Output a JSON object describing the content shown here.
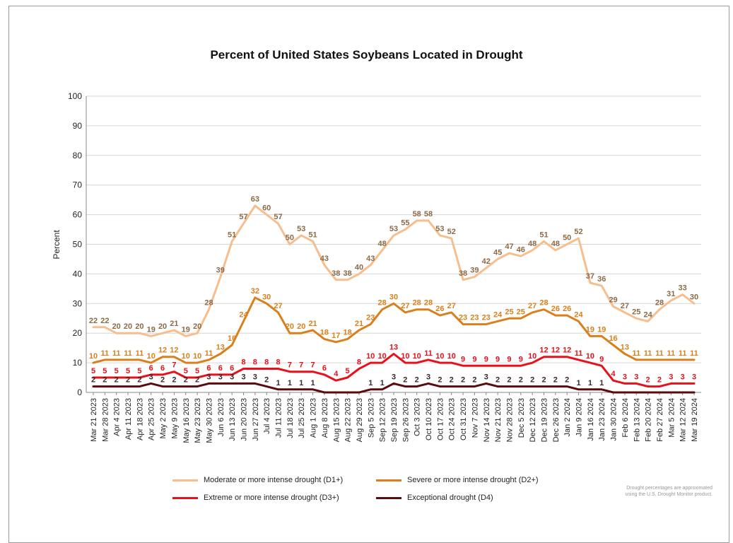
{
  "title": "Percent of United States Soybeans Located in Drought",
  "note_line1": "Drought percentages are approximated",
  "note_line2": "using the U.S. Drought Monitor product.",
  "chart_data": {
    "type": "line",
    "title": "Percent of United States Soybeans Located in Drought",
    "xlabel": "",
    "ylabel": "Percent",
    "ylim": [
      0,
      100
    ],
    "yticks": [
      0,
      10,
      20,
      30,
      40,
      50,
      60,
      70,
      80,
      90,
      100
    ],
    "grid": true,
    "legend_position": "bottom",
    "x": [
      "Mar 21",
      "Mar 28",
      "Apr 4",
      "Apr 11",
      "Apr 18",
      "Apr 25",
      "May 2",
      "May 9",
      "May 16",
      "May 23",
      "May 30",
      "Jun 6",
      "Jun 13",
      "Jun 20",
      "Jun 27",
      "Jul 4",
      "Jul 11",
      "Jul 18",
      "Jul 25",
      "Aug 1",
      "Aug 8",
      "Aug 15",
      "Aug 22",
      "Aug 29",
      "Sep 5",
      "Sep 12",
      "Sep 19",
      "Sep 26",
      "Oct 3",
      "Oct 10",
      "Oct 17",
      "Oct 24",
      "Oct 31",
      "Nov 7",
      "Nov 14",
      "Nov 21",
      "Nov 28",
      "Dec 5",
      "Dec 12",
      "Dec 19",
      "Dec 26",
      "Jan 2",
      "Jan 9",
      "Jan 16",
      "Jan 23",
      "Jan 30",
      "Feb 6",
      "Feb 13",
      "Feb 20",
      "Feb 27",
      "Mar 5",
      "Mar 12",
      "Mar 19"
    ],
    "x_tick_labels": [
      "Mar 21 2023",
      "Mar 28 2023",
      "Apr 4 2023",
      "Apr 11 2023",
      "Apr 18 2023",
      "Apr 25 2023",
      "May 2 2023",
      "May 9 2023",
      "May 16 2023",
      "May 23 2023",
      "May 30 2023",
      "Jun 6 2023",
      "Jun 13 2023",
      "Jun 20 2023",
      "Jun 27 2023",
      "Jul 4 2023",
      "Jul 11 2023",
      "Jul 18 2023",
      "Jul 25 2023",
      "Aug 1 2023",
      "Aug 8 2023",
      "Aug 15 2023",
      "Aug 22 2023",
      "Aug 29 2023",
      "Sep 5 2023",
      "Sep 12 2023",
      "Sep 19 2023",
      "Sep 26 2023",
      "Oct 3 2023",
      "Oct 10 2023",
      "Oct 17 2023",
      "Oct 24 2023",
      "Oct 31 2023",
      "Nov 7 2023",
      "Nov 14 2023",
      "Nov 21 2023",
      "Nov 28 2023",
      "Dec 5 2023",
      "Dec 12 2023",
      "Dec 19 2023",
      "Dec 26 2023",
      "Jan 2 2024",
      "Jan 9 2024",
      "Jan 16 2024",
      "Jan 23 2024",
      "Jan 30 2024",
      "Feb 6 2024",
      "Feb 13 2024",
      "Feb 20 2024",
      "Feb 27 2024",
      "Mar 5 2024",
      "Mar 12 2024",
      "Mar 19 2024"
    ],
    "series": [
      {
        "name": "Moderate or more intense drought (D1+)",
        "color": "#f6be8e",
        "values": [
          22,
          22,
          20,
          20,
          20,
          19,
          20,
          21,
          19,
          20,
          28,
          39,
          51,
          57,
          63,
          60,
          57,
          50,
          53,
          51,
          43,
          38,
          38,
          40,
          43,
          48,
          53,
          55,
          58,
          58,
          53,
          52,
          38,
          39,
          42,
          45,
          47,
          46,
          48,
          51,
          48,
          50,
          52,
          37,
          36,
          29,
          27,
          25,
          24,
          28,
          31,
          33,
          30
        ],
        "label_color": "#8b6a45"
      },
      {
        "name": "Severe or more intense drought (D2+)",
        "color": "#d9801c",
        "values": [
          10,
          11,
          11,
          11,
          11,
          10,
          12,
          12,
          10,
          10,
          11,
          13,
          16,
          24,
          32,
          30,
          27,
          20,
          20,
          21,
          18,
          17,
          18,
          21,
          23,
          28,
          30,
          27,
          28,
          28,
          26,
          27,
          23,
          23,
          23,
          24,
          25,
          25,
          27,
          28,
          26,
          26,
          24,
          19,
          19,
          16,
          13,
          11,
          11,
          11,
          11,
          11,
          11
        ],
        "label_color": "#d9801c"
      },
      {
        "name": "Extreme or more intense drought (D3+)",
        "color": "#e8101a",
        "values": [
          5,
          5,
          5,
          5,
          5,
          6,
          6,
          7,
          5,
          5,
          6,
          6,
          6,
          8,
          8,
          8,
          8,
          7,
          7,
          7,
          6,
          4,
          5,
          8,
          10,
          10,
          13,
          10,
          10,
          11,
          10,
          10,
          9,
          9,
          9,
          9,
          9,
          9,
          10,
          12,
          12,
          12,
          11,
          10,
          9,
          4,
          3,
          3,
          2,
          2,
          3,
          3,
          3
        ],
        "label_color": "#e8101a"
      },
      {
        "name": "Exceptional drought (D4)",
        "color": "#5b0a0e",
        "values": [
          2,
          2,
          2,
          2,
          2,
          3,
          2,
          2,
          2,
          2,
          3,
          3,
          3,
          3,
          3,
          2,
          1,
          1,
          1,
          1,
          0,
          0,
          0,
          0,
          1,
          1,
          3,
          2,
          2,
          3,
          2,
          2,
          2,
          2,
          3,
          2,
          2,
          2,
          2,
          2,
          2,
          2,
          1,
          1,
          1,
          0,
          0,
          0,
          0,
          0,
          0,
          0,
          0
        ],
        "label_color": "#3a2a2a",
        "shown_labels": [
          2,
          2,
          2,
          2,
          2,
          3,
          2,
          2,
          2,
          2,
          3,
          3,
          3,
          3,
          3,
          2,
          1,
          1,
          1,
          1,
          null,
          null,
          null,
          null,
          1,
          1,
          3,
          2,
          2,
          3,
          2,
          2,
          2,
          2,
          3,
          2,
          2,
          2,
          2,
          2,
          2,
          2,
          1,
          1,
          1,
          null,
          null,
          null,
          null,
          null,
          null,
          null,
          null
        ]
      }
    ]
  },
  "legend": [
    {
      "label": "Moderate or more intense drought (D1+)",
      "color": "#f6be8e"
    },
    {
      "label": "Severe or more intense drought (D2+)",
      "color": "#d9801c"
    },
    {
      "label": "Extreme or more intense drought (D3+)",
      "color": "#e8101a"
    },
    {
      "label": "Exceptional drought (D4)",
      "color": "#5b0a0e"
    }
  ]
}
